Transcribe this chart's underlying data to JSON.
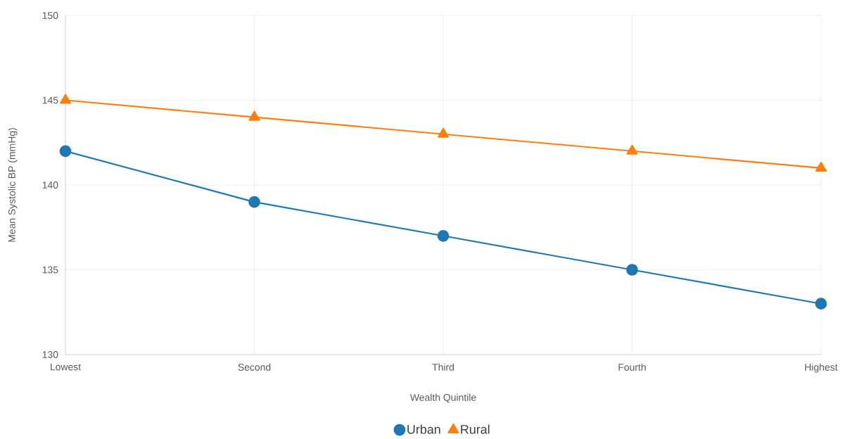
{
  "chart_data": {
    "type": "line",
    "xlabel": "Wealth Quintile",
    "ylabel": "Mean Systolic BP (mmHg)",
    "categories": [
      "Lowest",
      "Second",
      "Third",
      "Fourth",
      "Highest"
    ],
    "series": [
      {
        "name": "Urban",
        "color": "#1f77b4",
        "marker": "circle",
        "values": [
          142,
          139,
          137,
          135,
          133
        ]
      },
      {
        "name": "Rural",
        "color": "#ff7f0e",
        "marker": "triangle",
        "values": [
          145,
          144,
          143,
          142,
          141
        ]
      }
    ],
    "ylim": [
      130,
      150
    ],
    "yticks": [
      130,
      135,
      140,
      145,
      150
    ],
    "grid": true,
    "legend": "bottom",
    "line_style": "solid"
  }
}
